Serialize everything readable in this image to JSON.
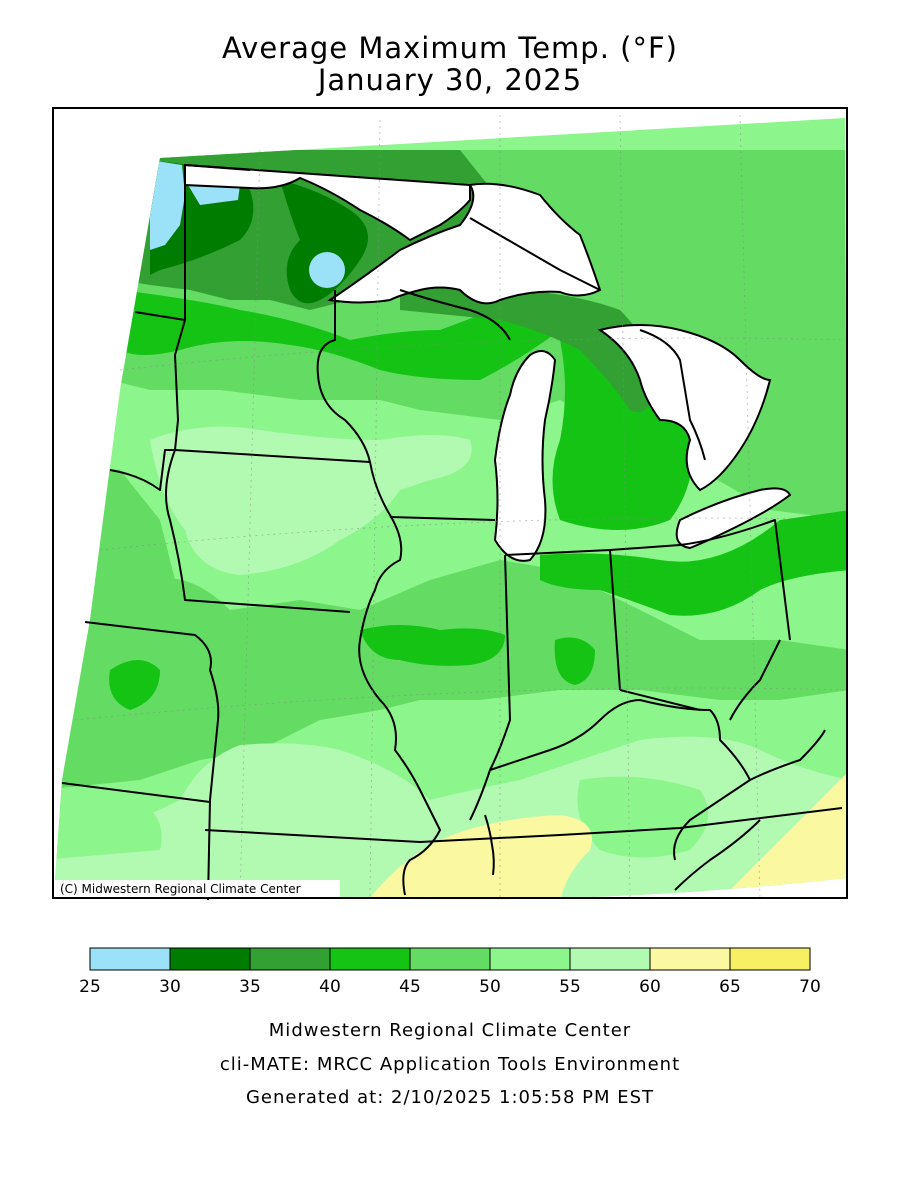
{
  "header": {
    "title_line1": "Average Maximum Temp. (°F)",
    "title_line2": "January 30, 2025"
  },
  "map": {
    "copyright": "(C) Midwestern Regional Climate Center",
    "colors": {
      "c25_30": "#9be1f8",
      "c30_35": "#007d00",
      "c35_40": "#32a032",
      "c40_45": "#14c314",
      "c45_50": "#64dc64",
      "c50_55": "#8cf58c",
      "c55_60": "#b2fab2",
      "c60_65": "#faf8a0",
      "c65_70": "#f8f064",
      "lake": "#ffffff",
      "border": "#000000"
    }
  },
  "legend": {
    "ticks": [
      "25",
      "30",
      "35",
      "40",
      "45",
      "50",
      "55",
      "60",
      "65",
      "70"
    ],
    "bins": [
      {
        "range": "25-30",
        "color": "#9be1f8"
      },
      {
        "range": "30-35",
        "color": "#007d00"
      },
      {
        "range": "35-40",
        "color": "#32a032"
      },
      {
        "range": "40-45",
        "color": "#14c314"
      },
      {
        "range": "45-50",
        "color": "#64dc64"
      },
      {
        "range": "50-55",
        "color": "#8cf58c"
      },
      {
        "range": "55-60",
        "color": "#b2fab2"
      },
      {
        "range": "60-65",
        "color": "#faf8a0"
      },
      {
        "range": "65-70",
        "color": "#f8f064"
      }
    ]
  },
  "footer": {
    "line1": "Midwestern Regional Climate Center",
    "line2": "cli-MATE: MRCC Application Tools Environment",
    "line3": "Generated at: 2/10/2025 1:05:58 PM EST"
  }
}
